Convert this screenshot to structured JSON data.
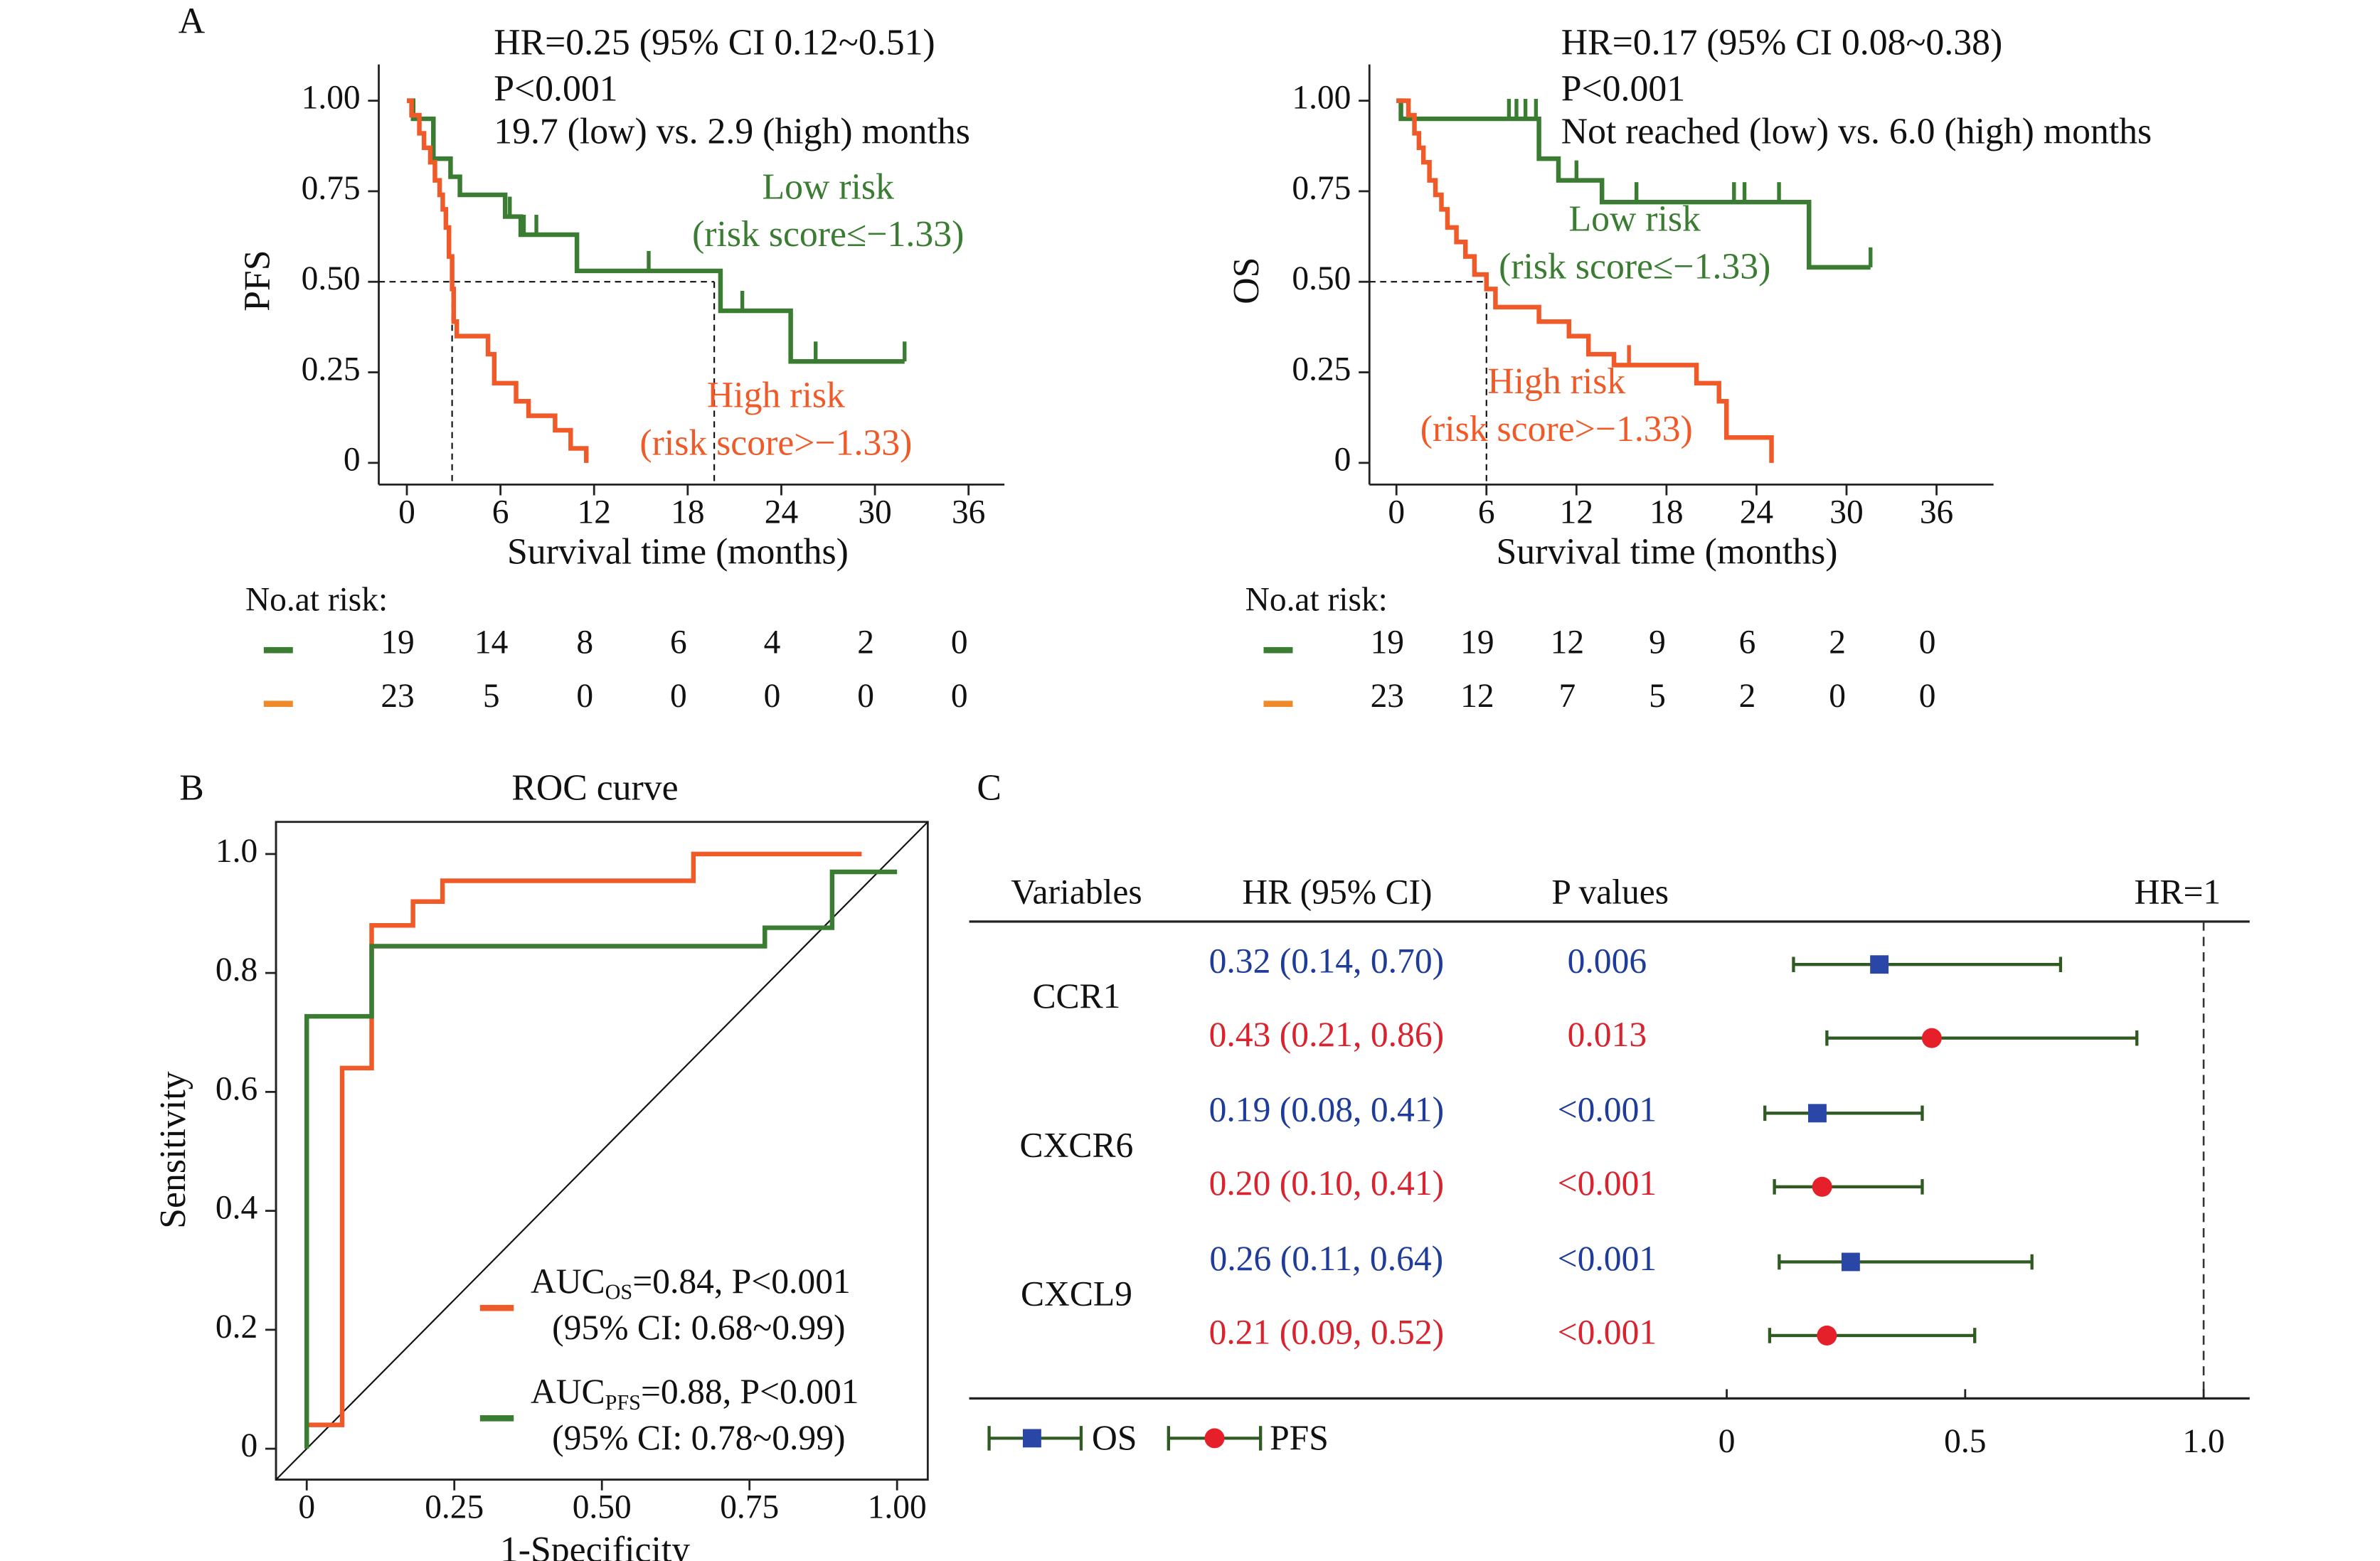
{
  "chart_data": [
    {
      "type": "km",
      "panel": "A",
      "ylabel": "PFS",
      "xlabel": "Survival time (months)",
      "annotations": [
        "HR=0.25 (95% CI 0.12~0.51)",
        "P<0.001",
        "19.7 (low) vs. 2.9 (high) months"
      ],
      "xlim": [
        -1.8,
        38.3
      ],
      "ylim": [
        -0.06,
        1.1
      ],
      "xticks": [
        0,
        6,
        12,
        18,
        24,
        30,
        36
      ],
      "yticks": [
        0,
        0.25,
        {
          "value": 0.5,
          "label": "0.50"
        },
        0.75,
        {
          "value": 1,
          "label": "1.00"
        }
      ],
      "median_y": 0.5,
      "median_x": [
        2.9,
        19.7
      ],
      "series": [
        {
          "name": "Low risk",
          "group": "(risk score≤−1.33)",
          "color": "#3a7d32",
          "x": [
            0,
            0.4,
            1.7,
            2.8,
            3.4,
            6.3,
            7.3,
            10.9,
            20.1,
            24.6,
            31.9
          ],
          "values": [
            1,
            0.95,
            0.84,
            0.79,
            0.74,
            0.68,
            0.63,
            0.53,
            0.42,
            0.28,
            0.28
          ],
          "censored": [
            6.6,
            7.5,
            8.3,
            15.5,
            21.5,
            26.2,
            31.9
          ]
        },
        {
          "name": "High risk",
          "group": "(risk score>−1.33)",
          "color": "#f05a28",
          "x": [
            0,
            0.3,
            0.8,
            1.1,
            1.5,
            1.8,
            2.1,
            2.3,
            2.5,
            2.7,
            2.9,
            3.0,
            3.2,
            5.2,
            5.6,
            7.0,
            7.8,
            9.5,
            10.5,
            11.5
          ],
          "values": [
            1,
            0.96,
            0.91,
            0.87,
            0.83,
            0.78,
            0.74,
            0.7,
            0.65,
            0.57,
            0.48,
            0.39,
            0.35,
            0.3,
            0.22,
            0.17,
            0.13,
            0.09,
            0.04,
            0
          ],
          "censored": []
        }
      ],
      "risk_table": {
        "title": "No.at risk:",
        "rows": [
          {
            "color": "#3a7d32",
            "values": [
              19,
              14,
              8,
              6,
              4,
              2,
              0
            ]
          },
          {
            "color": "#ef8a2a",
            "values": [
              23,
              5,
              0,
              0,
              0,
              0,
              0
            ]
          }
        ]
      }
    },
    {
      "type": "km",
      "ylabel": "OS",
      "xlabel": "Survival time (months)",
      "annotations": [
        "HR=0.17 (95% CI 0.08~0.38)",
        "P<0.001",
        "Not reached (low) vs. 6.0 (high) months"
      ],
      "xlim": [
        -1.8,
        39.8
      ],
      "ylim": [
        -0.06,
        1.1
      ],
      "xticks": [
        0,
        6,
        12,
        18,
        24,
        30,
        36
      ],
      "yticks": [
        0,
        0.25,
        {
          "value": 0.5,
          "label": "0.50"
        },
        0.75,
        {
          "value": 1,
          "label": "1.00"
        }
      ],
      "median_y": 0.5,
      "median_x": [
        6.0
      ],
      "series": [
        {
          "name": "Low risk",
          "group": "(risk score≤−1.33)",
          "color": "#3a7d32",
          "x": [
            0,
            0.3,
            9.5,
            10.8,
            13.7,
            27.5,
            31.6
          ],
          "values": [
            1,
            0.95,
            0.84,
            0.78,
            0.72,
            0.54,
            0.54
          ],
          "censored": [
            7.5,
            8.0,
            8.6,
            9.3,
            12.0,
            16.0,
            22.5,
            23.2,
            25.5,
            31.6
          ]
        },
        {
          "name": "High risk",
          "group": "(risk score>−1.33)",
          "color": "#f05a28",
          "x": [
            0,
            0.8,
            1.2,
            1.5,
            1.8,
            2.2,
            2.6,
            3.0,
            3.4,
            4.0,
            4.6,
            5.2,
            6.0,
            6.6,
            9.5,
            11.5,
            12.8,
            14.5,
            20.0,
            21.5,
            22.0,
            25.0
          ],
          "values": [
            1,
            0.96,
            0.91,
            0.87,
            0.83,
            0.78,
            0.74,
            0.7,
            0.65,
            0.61,
            0.57,
            0.52,
            0.48,
            0.43,
            0.39,
            0.35,
            0.3,
            0.27,
            0.22,
            0.17,
            0.07,
            0
          ],
          "censored": [
            15.5
          ]
        }
      ],
      "risk_table": {
        "title": "No.at risk:",
        "rows": [
          {
            "color": "#3a7d32",
            "values": [
              19,
              19,
              12,
              9,
              6,
              2,
              0
            ]
          },
          {
            "color": "#ef8a2a",
            "values": [
              23,
              12,
              7,
              5,
              2,
              0,
              0
            ]
          }
        ]
      }
    },
    {
      "type": "roc",
      "panel": "B",
      "title": "ROC curve",
      "xlabel": "1-Specificity",
      "ylabel": "Sensitivity",
      "xlim": [
        -0.052,
        1.052
      ],
      "ylim": [
        -0.052,
        1.054
      ],
      "xticks": [
        0,
        0.25,
        {
          "value": 0.5,
          "label": "0.50"
        },
        0.75,
        {
          "value": 1,
          "label": "1.00"
        }
      ],
      "yticks": [
        0,
        0.2,
        0.4,
        0.6,
        0.8,
        {
          "value": 1,
          "label": "1.0"
        }
      ],
      "diagonal": true,
      "series": [
        {
          "name": "AUC",
          "subscript": "OS",
          "stat": "=0.84, P<0.001",
          "ci": "(95% CI: 0.68~0.99)",
          "color": "#f05a28",
          "x": [
            0,
            0.06,
            0.06,
            0.11,
            0.11,
            0.18,
            0.18,
            0.23,
            0.23,
            0.655,
            0.655,
            0.94
          ],
          "values": [
            0.04,
            0.04,
            0.64,
            0.64,
            0.88,
            0.88,
            0.92,
            0.92,
            0.955,
            0.955,
            1,
            1
          ]
        },
        {
          "name": "AUC",
          "subscript": "PFS",
          "stat": "=0.88, P<0.001",
          "ci": "(95% CI: 0.78~0.99)",
          "color": "#3a7d32",
          "x": [
            0,
            0,
            0.11,
            0.11,
            0.776,
            0.776,
            0.89,
            0.89,
            1
          ],
          "values": [
            0,
            0.727,
            0.727,
            0.845,
            0.845,
            0.876,
            0.876,
            0.97,
            0.97
          ]
        }
      ]
    },
    {
      "type": "forest",
      "panel": "C",
      "headers": [
        "Variables",
        "HR (95% CI)",
        "P values"
      ],
      "reference": {
        "value": 1,
        "label": "HR=1"
      },
      "xlim": [
        0,
        1
      ],
      "xticks": [
        0,
        0.5,
        {
          "value": 1,
          "label": "1.0"
        }
      ],
      "variables": [
        "CCR1",
        "CXCR6",
        "CXCL9"
      ],
      "ci_color": "#2f5a22",
      "series": [
        {
          "name": "OS",
          "marker": "square",
          "color": "#2a47a8",
          "text_color": "#1f3c9a",
          "hr": [
            0.32,
            0.19,
            0.26
          ],
          "lower": [
            0.14,
            0.08,
            0.11
          ],
          "upper": [
            0.7,
            0.41,
            0.64
          ],
          "ci_labels": [
            "0.32 (0.14, 0.70)",
            "0.19 (0.08, 0.41)",
            "0.26 (0.11, 0.64)"
          ],
          "p_values": [
            "0.006",
            "<0.001",
            "<0.001"
          ]
        },
        {
          "name": "PFS",
          "marker": "circle",
          "color": "#e5202a",
          "text_color": "#d9242f",
          "hr": [
            0.43,
            0.2,
            0.21
          ],
          "lower": [
            0.21,
            0.1,
            0.09
          ],
          "upper": [
            0.86,
            0.41,
            0.52
          ],
          "ci_labels": [
            "0.43 (0.21, 0.86)",
            "0.20 (0.10, 0.41)",
            "0.21 (0.09, 0.52)"
          ],
          "p_values": [
            "0.013",
            "<0.001",
            "<0.001"
          ]
        }
      ]
    }
  ]
}
